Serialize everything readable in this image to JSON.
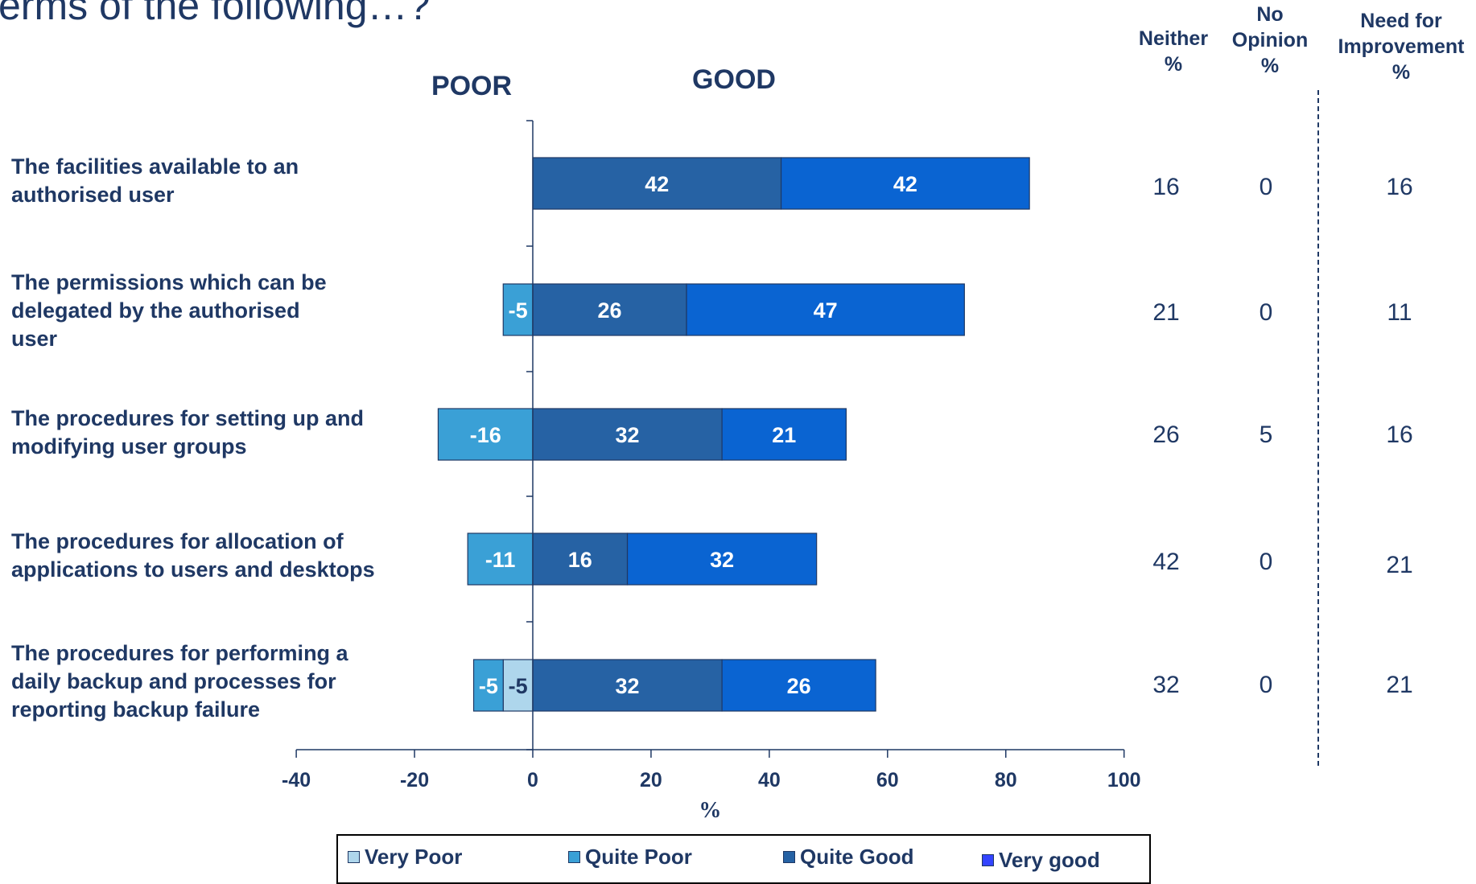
{
  "title_fragment": "erms of the following…?",
  "poles": {
    "poor": "POOR",
    "good": "GOOD"
  },
  "columns": {
    "neither": [
      "Neither",
      "%"
    ],
    "no_opinion": [
      "No",
      "Opinion",
      "%"
    ],
    "need_improvement": [
      "Need for",
      "Improvement",
      "%"
    ]
  },
  "legend": [
    {
      "label": "Very Poor",
      "color": "#aed6ec"
    },
    {
      "label": "Quite Poor",
      "color": "#3aa0d6"
    },
    {
      "label": "Quite Good",
      "color": "#2662a4"
    },
    {
      "label": "Very good",
      "color": "#0a64d2",
      "swatch": "#3344ff"
    }
  ],
  "rows": [
    {
      "lines": [
        "The facilities available to an",
        "authorised user"
      ],
      "neither": "16",
      "no_opinion": "0",
      "need_improvement": "16"
    },
    {
      "lines": [
        "The permissions which can be",
        "delegated by the authorised",
        "user"
      ],
      "neither": "21",
      "no_opinion": "0",
      "need_improvement": "11"
    },
    {
      "lines": [
        "The procedures for setting up and",
        "modifying user groups"
      ],
      "neither": "26",
      "no_opinion": "5",
      "need_improvement": "16"
    },
    {
      "lines": [
        "The procedures for allocation of",
        "applications to users and desktops"
      ],
      "neither": "42",
      "no_opinion": "0",
      "need_improvement": "21"
    },
    {
      "lines": [
        "The procedures for performing a",
        "daily backup and processes for",
        "reporting backup failure"
      ],
      "neither": "32",
      "no_opinion": "0",
      "need_improvement": "21"
    }
  ],
  "chart_data": {
    "type": "bar",
    "orientation": "horizontal",
    "stacked": true,
    "categories": [
      "The facilities available to an authorised user",
      "The permissions which can be delegated by the authorised user",
      "The procedures for setting up and modifying user groups",
      "The procedures for allocation of applications to users and desktops",
      "The procedures for performing a daily backup and processes for reporting backup failure"
    ],
    "series": [
      {
        "name": "Very Poor",
        "values": [
          0,
          0,
          0,
          0,
          -5
        ],
        "color": "#aed6ec"
      },
      {
        "name": "Quite Poor",
        "values": [
          0,
          -5,
          -16,
          -11,
          -5
        ],
        "color": "#3aa0d6"
      },
      {
        "name": "Quite Good",
        "values": [
          42,
          26,
          32,
          16,
          32
        ],
        "color": "#2662a4"
      },
      {
        "name": "Very good",
        "values": [
          42,
          47,
          21,
          32,
          26
        ],
        "color": "#0a64d2"
      }
    ],
    "xlabel": "%",
    "xlim": [
      -40,
      100
    ],
    "xticks": [
      -40,
      -20,
      0,
      20,
      40,
      60,
      80,
      100
    ],
    "grid": false,
    "legend_position": "bottom"
  }
}
